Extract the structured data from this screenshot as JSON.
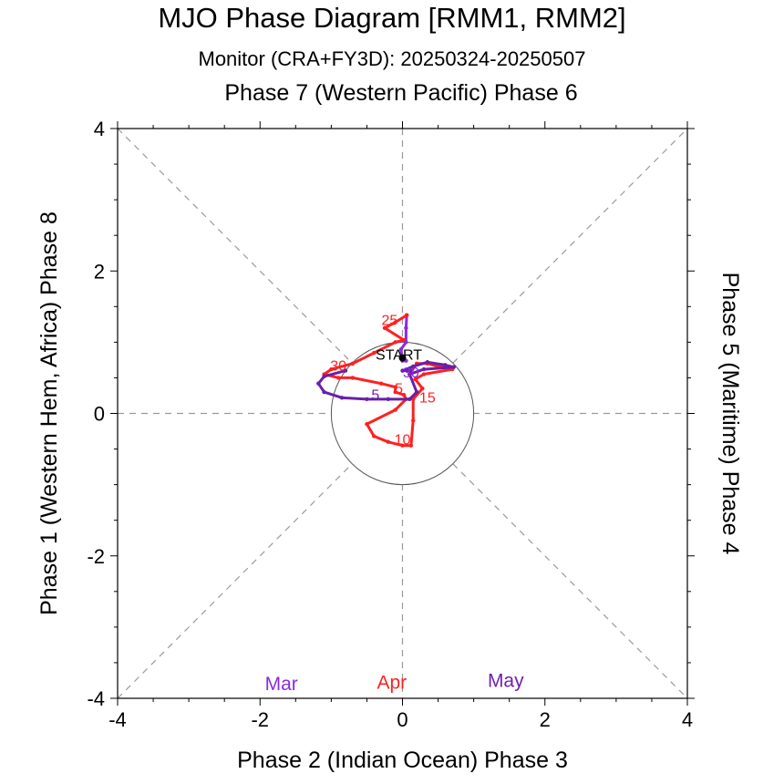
{
  "header": {
    "title": "MJO Phase Diagram [RMM1, RMM2]",
    "subtitle": "Monitor (CRA+FY3D): 20250324-20250507"
  },
  "chart_data": {
    "type": "line",
    "xlabel": "Phase 2 (Indian Ocean) Phase 3",
    "ylabel": "Phase 1 (Western Hem, Africa) Phase 8",
    "top_label": "Phase 7 (Western Pacific) Phase 6",
    "right_label": "Phase 5 (Maritime) Phase 4",
    "xlim": [
      -4,
      4
    ],
    "ylim": [
      -4,
      4
    ],
    "x_ticks": [
      -4,
      -2,
      0,
      2,
      4
    ],
    "y_ticks": [
      -4,
      -2,
      0,
      2,
      4
    ],
    "x_tick_labels": [
      "-4",
      "-2",
      "0",
      "2",
      "4"
    ],
    "y_tick_labels": [
      "-4",
      "-2",
      "0",
      "2",
      "4"
    ],
    "unit_circle_radius": 1,
    "start_label": "START",
    "start_point": [
      0.0,
      0.78
    ],
    "month_legend": [
      {
        "name": "Mar",
        "color": "#8a2be2",
        "x": -1.7,
        "y": -3.78
      },
      {
        "name": "Apr",
        "color": "#ff2020",
        "x": -0.15,
        "y": -3.76
      },
      {
        "name": "May",
        "color": "#7020b0",
        "x": 1.45,
        "y": -3.74
      }
    ],
    "series": [
      {
        "name": "Mar",
        "color": "#8a2be2",
        "points": [
          [
            0.0,
            0.78
          ],
          [
            0.02,
            0.76
          ],
          [
            0.05,
            0.74
          ],
          [
            0.0,
            0.74
          ],
          [
            -0.02,
            0.9
          ],
          [
            0.05,
            1.0
          ],
          [
            0.05,
            1.2
          ],
          [
            0.06,
            1.38
          ]
        ]
      },
      {
        "name": "Apr",
        "color": "#ff2020",
        "points": [
          [
            0.06,
            1.38
          ],
          [
            -0.1,
            1.28
          ],
          [
            -0.25,
            1.2
          ],
          [
            0.02,
            1.03
          ],
          [
            -0.1,
            1.0
          ],
          [
            -0.4,
            0.85
          ],
          [
            -0.7,
            0.7
          ],
          [
            -1.0,
            0.62
          ],
          [
            -1.1,
            0.55
          ],
          [
            -0.9,
            0.5
          ],
          [
            -0.7,
            0.5
          ],
          [
            -0.3,
            0.42
          ],
          [
            -0.1,
            0.37
          ],
          [
            -0.1,
            0.3
          ],
          [
            0.02,
            0.26
          ],
          [
            0.05,
            0.2
          ],
          [
            -0.1,
            0.05
          ],
          [
            -0.5,
            -0.15
          ],
          [
            -0.4,
            -0.32
          ],
          [
            -0.2,
            -0.4
          ],
          [
            0.0,
            -0.45
          ],
          [
            0.12,
            -0.45
          ],
          [
            0.15,
            -0.1
          ],
          [
            0.15,
            0.2
          ],
          [
            0.28,
            0.35
          ],
          [
            0.18,
            0.48
          ],
          [
            0.3,
            0.55
          ],
          [
            0.7,
            0.62
          ],
          [
            0.5,
            0.66
          ],
          [
            0.35,
            0.7
          ],
          [
            0.2,
            0.7
          ],
          [
            0.1,
            0.55
          ],
          [
            0.12,
            0.6
          ]
        ]
      },
      {
        "name": "May",
        "color": "#6a1fa8",
        "points": [
          [
            0.12,
            0.6
          ],
          [
            0.0,
            0.6
          ],
          [
            0.15,
            0.66
          ],
          [
            0.35,
            0.72
          ],
          [
            0.6,
            0.68
          ],
          [
            0.72,
            0.65
          ],
          [
            0.3,
            0.62
          ],
          [
            0.1,
            0.55
          ],
          [
            0.2,
            0.3
          ],
          [
            0.1,
            0.2
          ],
          [
            -0.2,
            0.2
          ],
          [
            -0.5,
            0.2
          ],
          [
            -0.85,
            0.22
          ],
          [
            -1.1,
            0.3
          ],
          [
            -1.18,
            0.42
          ],
          [
            -1.1,
            0.52
          ],
          [
            -0.8,
            0.6
          ]
        ]
      }
    ],
    "day_labels": [
      {
        "text": "25",
        "color": "#ff2020",
        "x": -0.18,
        "y": 1.32
      },
      {
        "text": "30",
        "color": "#ff2020",
        "x": -0.9,
        "y": 0.68
      },
      {
        "text": "5",
        "color": "#ff2020",
        "x": -0.05,
        "y": 0.36
      },
      {
        "text": "10",
        "color": "#ff2020",
        "x": 0.0,
        "y": -0.36
      },
      {
        "text": "15",
        "color": "#ff2020",
        "x": 0.35,
        "y": 0.23
      },
      {
        "text": "30",
        "color": "#8a2be2",
        "x": 0.12,
        "y": 0.58
      },
      {
        "text": "5",
        "color": "#6a1fa8",
        "x": -0.38,
        "y": 0.27
      }
    ]
  }
}
